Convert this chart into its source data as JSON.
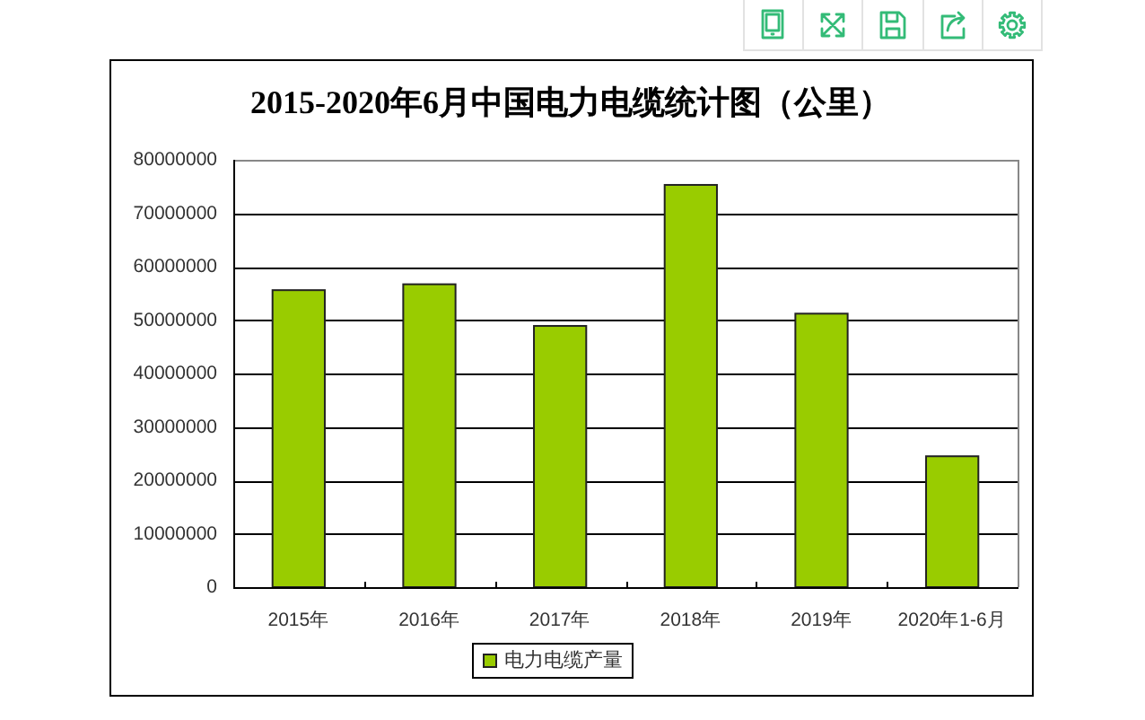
{
  "chart_data": {
    "type": "bar",
    "title": "2015-2020年6月中国电力电缆统计图（公里）",
    "categories": [
      "2015年",
      "2016年",
      "2017年",
      "2018年",
      "2019年",
      "2020年1-6月"
    ],
    "series": [
      {
        "name": "电力电缆产量",
        "color": "#99cc00",
        "values": [
          55600000,
          56700000,
          48900000,
          75300000,
          51200000,
          24500000
        ]
      }
    ],
    "ylim": [
      0,
      80000000
    ],
    "yticks": [
      0,
      10000000,
      20000000,
      30000000,
      40000000,
      50000000,
      60000000,
      70000000,
      80000000
    ],
    "grid": "y",
    "legend": "bottom"
  }
}
